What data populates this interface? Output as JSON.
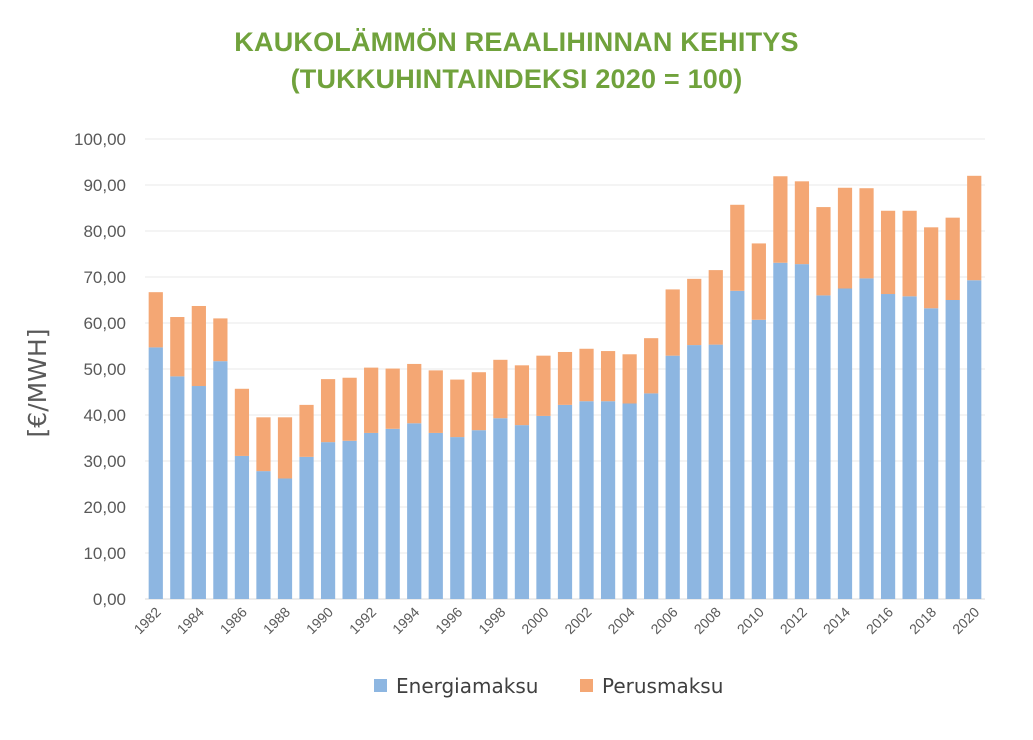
{
  "chart_data": {
    "type": "bar",
    "stacked": true,
    "title": [
      "KAUKOLÄMMÖN REAALIHINNAN KEHITYS",
      "(TUKKUHINTAINDEKSI 2020 = 100)"
    ],
    "ylabel": "[€/MWH]",
    "xlabel": "",
    "ylim": [
      0,
      100
    ],
    "yticks": [
      "0,00",
      "10,00",
      "20,00",
      "30,00",
      "40,00",
      "50,00",
      "60,00",
      "70,00",
      "80,00",
      "90,00",
      "100,00"
    ],
    "grid": true,
    "legend": "bottom",
    "categories": [
      "1982",
      "1983",
      "1984",
      "1985",
      "1986",
      "1987",
      "1988",
      "1989",
      "1990",
      "1991",
      "1992",
      "1993",
      "1994",
      "1995",
      "1996",
      "1997",
      "1998",
      "1999",
      "2000",
      "2001",
      "2002",
      "2003",
      "2004",
      "2005",
      "2006",
      "2007",
      "2008",
      "2009",
      "2010",
      "2011",
      "2012",
      "2013",
      "2014",
      "2015",
      "2016",
      "2017",
      "2018",
      "2019",
      "2020"
    ],
    "tick_labels": [
      "1982",
      "",
      "1984",
      "",
      "1986",
      "",
      "1988",
      "",
      "1990",
      "",
      "1992",
      "",
      "1994",
      "",
      "1996",
      "",
      "1998",
      "",
      "2000",
      "",
      "2002",
      "",
      "2004",
      "",
      "2006",
      "",
      "2008",
      "",
      "2010",
      "",
      "2012",
      "",
      "2014",
      "",
      "2016",
      "",
      "2018",
      "",
      "2020"
    ],
    "series": [
      {
        "name": "Energiamaksu",
        "color": "#8DB6E1",
        "values": [
          54.7,
          48.4,
          46.3,
          51.7,
          31.1,
          27.8,
          26.2,
          30.9,
          34.1,
          34.4,
          36.1,
          37.0,
          38.2,
          36.1,
          35.2,
          36.7,
          39.3,
          37.8,
          39.8,
          42.2,
          43.0,
          43.0,
          42.5,
          44.7,
          52.9,
          55.2,
          55.3,
          67.0,
          60.7,
          73.1,
          72.8,
          66.0,
          67.5,
          69.7,
          66.3,
          65.8,
          63.2,
          65.0,
          69.3
        ]
      },
      {
        "name": "Perusmaksu",
        "color": "#F4A774",
        "values": [
          12.0,
          12.9,
          17.4,
          9.3,
          14.6,
          11.7,
          13.3,
          11.3,
          13.7,
          13.7,
          14.2,
          13.1,
          12.9,
          13.6,
          12.5,
          12.6,
          12.7,
          13.0,
          13.1,
          11.5,
          11.4,
          10.9,
          10.7,
          12.0,
          14.4,
          14.4,
          16.2,
          18.7,
          16.6,
          18.8,
          18.0,
          19.2,
          21.9,
          19.6,
          18.1,
          18.6,
          17.6,
          17.9,
          22.7
        ]
      }
    ]
  }
}
